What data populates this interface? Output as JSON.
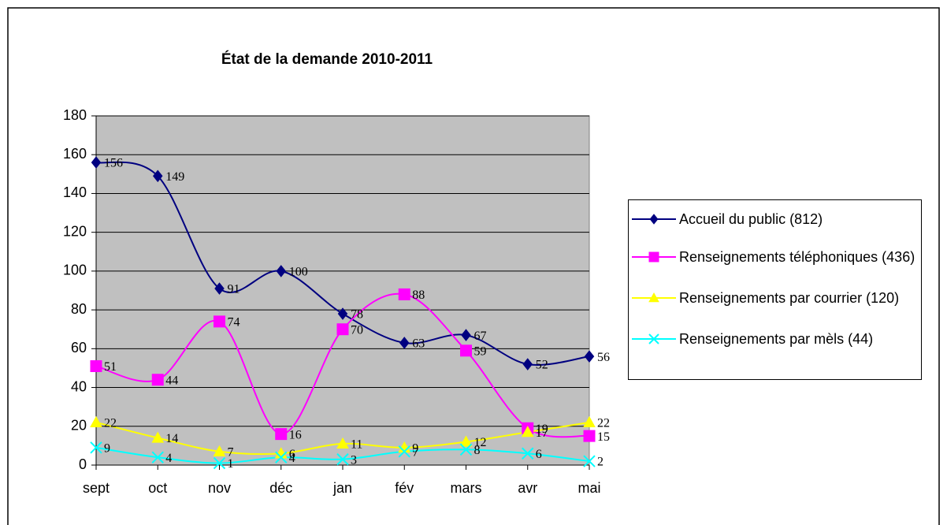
{
  "chart_data": {
    "type": "line",
    "title": "État de la demande 2010-2011",
    "categories": [
      "sept",
      "oct",
      "nov",
      "déc",
      "jan",
      "fév",
      "mars",
      "avr",
      "mai"
    ],
    "series": [
      {
        "name": "Accueil du public (812)",
        "color": "#000080",
        "marker": "diamond",
        "values": [
          156,
          149,
          91,
          100,
          78,
          63,
          67,
          52,
          56
        ]
      },
      {
        "name": "Renseignements téléphoniques (436)",
        "color": "#ff00ff",
        "marker": "square",
        "values": [
          51,
          44,
          74,
          16,
          70,
          88,
          59,
          19,
          15
        ]
      },
      {
        "name": "Renseignements par courrier (120)",
        "color": "#ffff00",
        "marker": "triangle",
        "values": [
          22,
          14,
          7,
          6,
          11,
          9,
          12,
          17,
          22
        ]
      },
      {
        "name": "Renseignements par mèls (44)",
        "color": "#00ffff",
        "marker": "x",
        "values": [
          9,
          4,
          1,
          4,
          3,
          7,
          8,
          6,
          2
        ]
      }
    ],
    "ylim": [
      0,
      180
    ],
    "yticks": [
      0,
      20,
      40,
      60,
      80,
      100,
      120,
      140,
      160,
      180
    ],
    "grid": true,
    "legend": "right"
  }
}
